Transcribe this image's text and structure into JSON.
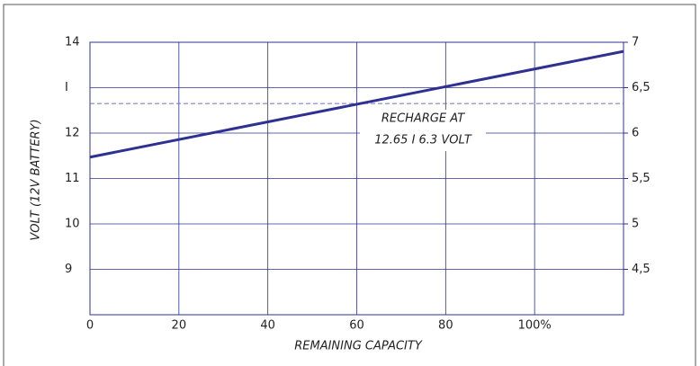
{
  "chart_data": {
    "type": "line",
    "ylabel": "VOLT (12V BATTERY)",
    "xlabel": "REMAINING CAPACITY",
    "x": [
      0,
      120
    ],
    "series": [
      {
        "color": "#2e3192",
        "values": [
          11.47,
          13.8
        ]
      }
    ],
    "xlim": [
      0,
      120
    ],
    "xticks": [
      0,
      20,
      40,
      60,
      80,
      {
        "value": 100,
        "label": "100%"
      }
    ],
    "ylim": [
      8,
      14
    ],
    "yticks": [
      9,
      10,
      11,
      12,
      {
        "value": 13,
        "label": "I"
      },
      14
    ],
    "y2lim": [
      4,
      7
    ],
    "y2ticks": [
      {
        "value": 4.5,
        "label": "4,5"
      },
      5,
      {
        "value": 5.5,
        "label": "5,5"
      },
      6,
      {
        "value": 6.5,
        "label": "6,5"
      },
      7
    ],
    "reference_line": {
      "value": 12.65,
      "color": "#7070b0"
    },
    "annotation": [
      "RECHARGE AT",
      "12.65 I 6.3 VOLT"
    ],
    "grid": true,
    "grid_color": "#2e3192"
  }
}
